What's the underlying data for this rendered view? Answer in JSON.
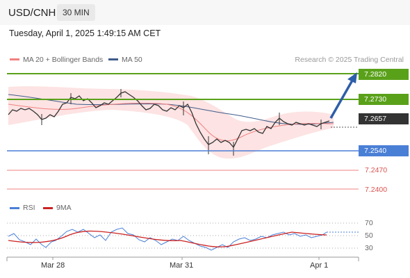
{
  "header": {
    "pair": "USD/CNH",
    "timeframe": "30 MIN"
  },
  "datetime": "Tuesday, April 1, 2025 1:49:15 AM CET",
  "legend": {
    "ma20": "MA 20 + Bollinger Bands",
    "ma50": "MA 50",
    "credit": "Research © 2025 Trading Central",
    "ma20_color": "#f08080",
    "ma50_color": "#3f5b8a"
  },
  "levels": {
    "r2": "7.2820",
    "r1": "7.2730",
    "last": "7.2657",
    "s1": "7.2540",
    "s2": "7.2470",
    "s3": "7.2400"
  },
  "colors": {
    "resistance": "#5aa11a",
    "support": "#4a7fd6",
    "price_tag": "#333333",
    "target": "#d9534f",
    "arrow": "#2d5ea8"
  },
  "rsi_legend": {
    "rsi": "RSI",
    "ma9": "9MA"
  },
  "rsi_levels": [
    "70",
    "50",
    "30"
  ],
  "xaxis": [
    "Mar 28",
    "Mar 31",
    "Apr 1"
  ]
}
